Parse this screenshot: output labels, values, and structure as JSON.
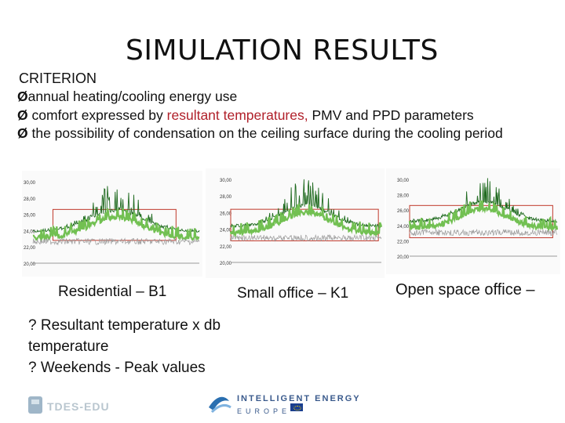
{
  "slide": {
    "title": "SIMULATION RESULTS",
    "criterion": "CRITERION",
    "bullets": {
      "b1": "annual heating/cooling energy use",
      "b2_pre": " comfort expressed by ",
      "b2_red": "resultant temperatures,",
      "b2_post": " PMV and PPD parameters",
      "b3": " the possibility of condensation on the ceiling surface during the cooling period"
    },
    "captions": [
      "Residential – B1",
      "Small office – K1",
      "Open space office –"
    ],
    "notes": [
      "? Resultant temperature x db temperature",
      "? Weekends -  Peak values"
    ],
    "footer": {
      "left_logo_text": "TDES-EDU",
      "right_logo_line1": "INTELLIGENT ENERGY",
      "right_logo_line2": "EUROPE"
    },
    "chart_ticks": {
      "y_labels": [
        "30,00",
        "28,00",
        "26,00",
        "24,00",
        "22,00",
        "20,00"
      ]
    },
    "colors": {
      "dark_green": "#1f6a1f",
      "light_green": "#72c052",
      "red_box": "#c0392b",
      "grey_line": "#9a9a9a",
      "highlight_red": "#b0202a"
    }
  }
}
